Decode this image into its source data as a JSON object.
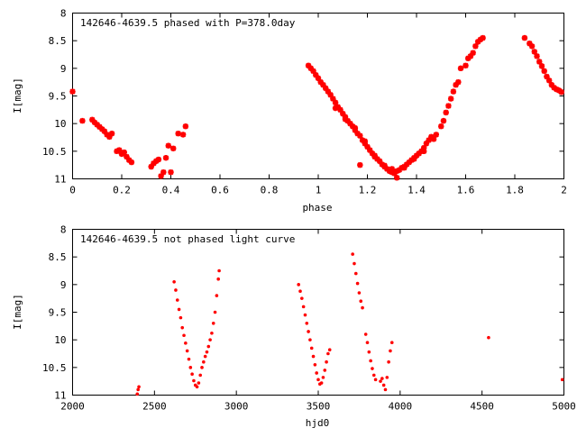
{
  "colors": {
    "points": "#ff0000",
    "axes": "#000000",
    "background": "#ffffff"
  },
  "chart_data": [
    {
      "type": "scatter",
      "title": "142646-4639.5 phased with P=378.0day",
      "xlabel": "phase",
      "ylabel": "I[mag]",
      "xlim": [
        0,
        2
      ],
      "ylim": [
        11,
        8
      ],
      "y_inverted": true,
      "xticks": [
        0,
        0.2,
        0.4,
        0.6,
        0.8,
        1,
        1.2,
        1.4,
        1.6,
        1.8,
        2
      ],
      "xtick_labels": [
        "0",
        "0.2",
        "0.4",
        "0.6",
        "0.8",
        "1",
        "1.2",
        "1.4",
        "1.6",
        "1.8",
        "2"
      ],
      "yticks": [
        8,
        8.5,
        9,
        9.5,
        10,
        10.5,
        11
      ],
      "ytick_labels": [
        "8",
        "8.5",
        "9",
        "9.5",
        "10",
        "10.5",
        "11"
      ],
      "grid": false,
      "marker": "star",
      "series": [
        {
          "points": [
            [
              0.0,
              9.42
            ],
            [
              0.04,
              9.95
            ],
            [
              0.08,
              9.93
            ],
            [
              0.09,
              9.98
            ],
            [
              0.1,
              10.02
            ],
            [
              0.11,
              10.06
            ],
            [
              0.12,
              10.1
            ],
            [
              0.13,
              10.14
            ],
            [
              0.14,
              10.2
            ],
            [
              0.15,
              10.24
            ],
            [
              0.16,
              10.18
            ],
            [
              0.18,
              10.5
            ],
            [
              0.19,
              10.48
            ],
            [
              0.2,
              10.55
            ],
            [
              0.21,
              10.52
            ],
            [
              0.22,
              10.6
            ],
            [
              0.23,
              10.66
            ],
            [
              0.24,
              10.7
            ],
            [
              0.32,
              10.78
            ],
            [
              0.33,
              10.72
            ],
            [
              0.34,
              10.68
            ],
            [
              0.35,
              10.65
            ],
            [
              0.36,
              10.95
            ],
            [
              0.37,
              10.88
            ],
            [
              0.38,
              10.62
            ],
            [
              0.39,
              10.4
            ],
            [
              0.4,
              10.88
            ],
            [
              0.41,
              10.45
            ],
            [
              0.43,
              10.18
            ],
            [
              0.45,
              10.2
            ],
            [
              0.46,
              10.05
            ],
            [
              0.96,
              8.95
            ],
            [
              0.97,
              9.0
            ],
            [
              0.98,
              9.05
            ],
            [
              0.99,
              9.12
            ],
            [
              1.0,
              9.18
            ],
            [
              1.01,
              9.25
            ],
            [
              1.02,
              9.3
            ],
            [
              1.03,
              9.36
            ],
            [
              1.04,
              9.42
            ],
            [
              1.05,
              9.48
            ],
            [
              1.06,
              9.55
            ],
            [
              1.07,
              9.62
            ],
            [
              1.08,
              9.7
            ],
            [
              1.09,
              9.75
            ],
            [
              1.1,
              9.82
            ],
            [
              1.11,
              9.88
            ],
            [
              1.12,
              9.95
            ],
            [
              1.13,
              10.0
            ],
            [
              1.14,
              10.05
            ],
            [
              1.15,
              10.12
            ],
            [
              1.16,
              10.18
            ],
            [
              1.17,
              10.22
            ],
            [
              1.18,
              10.3
            ],
            [
              1.19,
              10.36
            ],
            [
              1.2,
              10.42
            ],
            [
              1.21,
              10.48
            ],
            [
              1.22,
              10.54
            ],
            [
              1.23,
              10.6
            ],
            [
              1.24,
              10.64
            ],
            [
              1.25,
              10.68
            ],
            [
              1.26,
              10.74
            ],
            [
              1.27,
              10.78
            ],
            [
              1.28,
              10.82
            ],
            [
              1.29,
              10.86
            ],
            [
              1.3,
              10.88
            ],
            [
              1.31,
              10.9
            ],
            [
              1.32,
              10.86
            ],
            [
              1.33,
              10.84
            ],
            [
              1.34,
              10.8
            ],
            [
              1.35,
              10.78
            ],
            [
              1.36,
              10.74
            ],
            [
              1.37,
              10.7
            ],
            [
              1.38,
              10.66
            ],
            [
              1.39,
              10.62
            ],
            [
              1.4,
              10.58
            ],
            [
              1.41,
              10.54
            ],
            [
              1.42,
              10.5
            ],
            [
              1.43,
              10.44
            ],
            [
              1.44,
              10.36
            ],
            [
              1.45,
              10.3
            ],
            [
              1.46,
              10.24
            ],
            [
              1.47,
              10.28
            ],
            [
              1.48,
              10.2
            ],
            [
              1.5,
              10.05
            ],
            [
              1.51,
              9.95
            ],
            [
              1.52,
              9.8
            ],
            [
              1.53,
              9.68
            ],
            [
              1.54,
              9.55
            ],
            [
              1.55,
              9.42
            ],
            [
              1.56,
              9.3
            ],
            [
              1.57,
              9.25
            ],
            [
              1.58,
              9.0
            ],
            [
              1.6,
              8.95
            ],
            [
              1.61,
              8.82
            ],
            [
              1.62,
              8.78
            ],
            [
              1.63,
              8.72
            ],
            [
              1.64,
              8.6
            ],
            [
              1.65,
              8.52
            ],
            [
              1.66,
              8.48
            ],
            [
              1.67,
              8.45
            ],
            [
              1.84,
              8.45
            ],
            [
              1.86,
              8.55
            ],
            [
              1.87,
              8.6
            ],
            [
              1.88,
              8.7
            ],
            [
              1.89,
              8.78
            ],
            [
              1.9,
              8.88
            ],
            [
              1.91,
              8.96
            ],
            [
              1.92,
              9.05
            ],
            [
              1.93,
              9.15
            ],
            [
              1.94,
              9.22
            ],
            [
              1.95,
              9.3
            ],
            [
              1.96,
              9.35
            ],
            [
              1.97,
              9.38
            ],
            [
              1.98,
              9.4
            ],
            [
              1.99,
              9.43
            ],
            [
              1.07,
              9.72
            ],
            [
              1.11,
              9.92
            ],
            [
              1.15,
              10.08
            ],
            [
              1.19,
              10.32
            ],
            [
              1.23,
              10.58
            ],
            [
              1.27,
              10.76
            ],
            [
              1.31,
              10.88
            ],
            [
              1.35,
              10.8
            ],
            [
              1.39,
              10.64
            ],
            [
              1.43,
              10.5
            ],
            [
              1.17,
              10.75
            ],
            [
              1.3,
              10.82
            ],
            [
              1.32,
              10.98
            ]
          ]
        }
      ]
    },
    {
      "type": "scatter",
      "title": "142646-4639.5 not phased light curve",
      "xlabel": "hjd0",
      "ylabel": "I[mag]",
      "xlim": [
        2000,
        5000
      ],
      "ylim": [
        11,
        8
      ],
      "y_inverted": true,
      "xticks": [
        2000,
        2500,
        3000,
        3500,
        4000,
        4500,
        5000
      ],
      "xtick_labels": [
        "2000",
        "2500",
        "3000",
        "3500",
        "4000",
        "4500",
        "5000"
      ],
      "yticks": [
        8,
        8.5,
        9,
        9.5,
        10,
        10.5,
        11
      ],
      "ytick_labels": [
        "8",
        "8.5",
        "9",
        "9.5",
        "10",
        "10.5",
        "11"
      ],
      "grid": false,
      "marker": "dot",
      "series": [
        {
          "points": [
            [
              2395,
              10.98
            ],
            [
              2400,
              10.9
            ],
            [
              2405,
              10.85
            ],
            [
              2620,
              8.95
            ],
            [
              2630,
              9.1
            ],
            [
              2640,
              9.28
            ],
            [
              2650,
              9.45
            ],
            [
              2660,
              9.6
            ],
            [
              2670,
              9.78
            ],
            [
              2680,
              9.92
            ],
            [
              2690,
              10.06
            ],
            [
              2700,
              10.2
            ],
            [
              2710,
              10.35
            ],
            [
              2720,
              10.5
            ],
            [
              2730,
              10.62
            ],
            [
              2740,
              10.74
            ],
            [
              2750,
              10.82
            ],
            [
              2760,
              10.85
            ],
            [
              2770,
              10.78
            ],
            [
              2780,
              10.64
            ],
            [
              2790,
              10.5
            ],
            [
              2800,
              10.4
            ],
            [
              2810,
              10.3
            ],
            [
              2820,
              10.22
            ],
            [
              2830,
              10.12
            ],
            [
              2840,
              10.0
            ],
            [
              2850,
              9.88
            ],
            [
              2860,
              9.7
            ],
            [
              2870,
              9.5
            ],
            [
              2880,
              9.2
            ],
            [
              2890,
              8.9
            ],
            [
              2895,
              8.75
            ],
            [
              3380,
              9.0
            ],
            [
              3390,
              9.12
            ],
            [
              3400,
              9.25
            ],
            [
              3410,
              9.4
            ],
            [
              3420,
              9.55
            ],
            [
              3430,
              9.7
            ],
            [
              3440,
              9.85
            ],
            [
              3450,
              10.0
            ],
            [
              3460,
              10.15
            ],
            [
              3470,
              10.3
            ],
            [
              3480,
              10.45
            ],
            [
              3490,
              10.6
            ],
            [
              3500,
              10.72
            ],
            [
              3510,
              10.8
            ],
            [
              3520,
              10.78
            ],
            [
              3530,
              10.68
            ],
            [
              3540,
              10.55
            ],
            [
              3550,
              10.4
            ],
            [
              3560,
              10.25
            ],
            [
              3570,
              10.18
            ],
            [
              3710,
              8.45
            ],
            [
              3720,
              8.62
            ],
            [
              3730,
              8.8
            ],
            [
              3740,
              8.98
            ],
            [
              3750,
              9.15
            ],
            [
              3760,
              9.3
            ],
            [
              3770,
              9.42
            ],
            [
              3790,
              9.9
            ],
            [
              3800,
              10.05
            ],
            [
              3810,
              10.22
            ],
            [
              3820,
              10.38
            ],
            [
              3830,
              10.52
            ],
            [
              3840,
              10.64
            ],
            [
              3850,
              10.72
            ],
            [
              3880,
              10.75
            ],
            [
              3890,
              10.7
            ],
            [
              3900,
              10.82
            ],
            [
              3910,
              10.9
            ],
            [
              3920,
              10.68
            ],
            [
              3930,
              10.4
            ],
            [
              3940,
              10.2
            ],
            [
              3950,
              10.05
            ],
            [
              4540,
              9.96
            ],
            [
              4990,
              10.72
            ]
          ]
        }
      ]
    }
  ]
}
